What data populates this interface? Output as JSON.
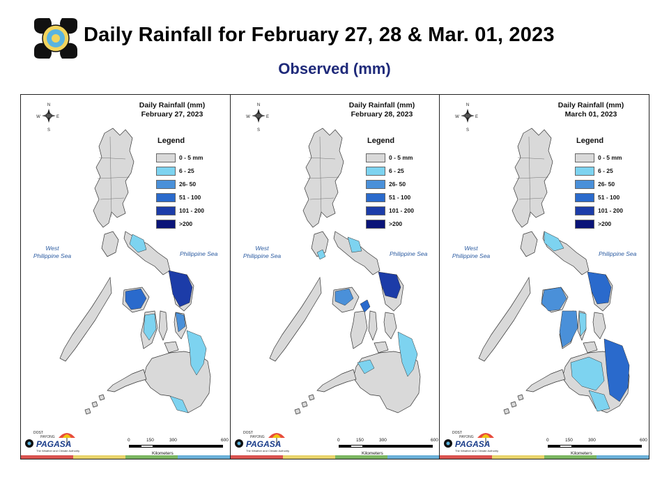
{
  "header": {
    "title": "Daily Rainfall for February 27, 28 & Mar. 01, 2023",
    "subtitle": "Observed (mm)"
  },
  "colors": {
    "land_dry": "#d9d9d9",
    "light_blue": "#7dd3f0",
    "mid_blue": "#4a90d9",
    "blue": "#2a6acc",
    "dark_blue": "#1c3ca8",
    "navy": "#0a1478",
    "title_blue": "#1f2a7a",
    "strip": [
      "#d9534f",
      "#e8d36a",
      "#7bb661",
      "#6ab0d8"
    ]
  },
  "panels": [
    {
      "map_title_line1": "Daily Rainfall (mm)",
      "map_title_line2": "February 27, 2023"
    },
    {
      "map_title_line1": "Daily Rainfall (mm)",
      "map_title_line2": "February 28, 2023"
    },
    {
      "map_title_line1": "Daily Rainfall (mm)",
      "map_title_line2": "March 01, 2023"
    }
  ],
  "legend": {
    "title": "Legend",
    "items": [
      {
        "label": "0 - 5 mm",
        "color": "#d9d9d9"
      },
      {
        "label": "6 - 25",
        "color": "#7dd3f0"
      },
      {
        "label": "26- 50",
        "color": "#4a90d9"
      },
      {
        "label": "51 - 100",
        "color": "#2a6acc"
      },
      {
        "label": "101 - 200",
        "color": "#1c3ca8"
      },
      {
        "label": ">200",
        "color": "#0a1478"
      }
    ]
  },
  "labels": {
    "west_sea_line1": "West",
    "west_sea_line2": "Philippine Sea",
    "phil_sea": "Philippine Sea"
  },
  "scale": {
    "ticks": [
      "0",
      "150",
      "300",
      "600"
    ],
    "unit": "Kilometers"
  },
  "compass": {
    "n": "N",
    "s": "S",
    "e": "E",
    "w": "W"
  },
  "branding": {
    "org": "PAGASA",
    "prefix": "DOST",
    "tagline": "The Weather and Climate Authority",
    "payong": "PAYONG"
  }
}
